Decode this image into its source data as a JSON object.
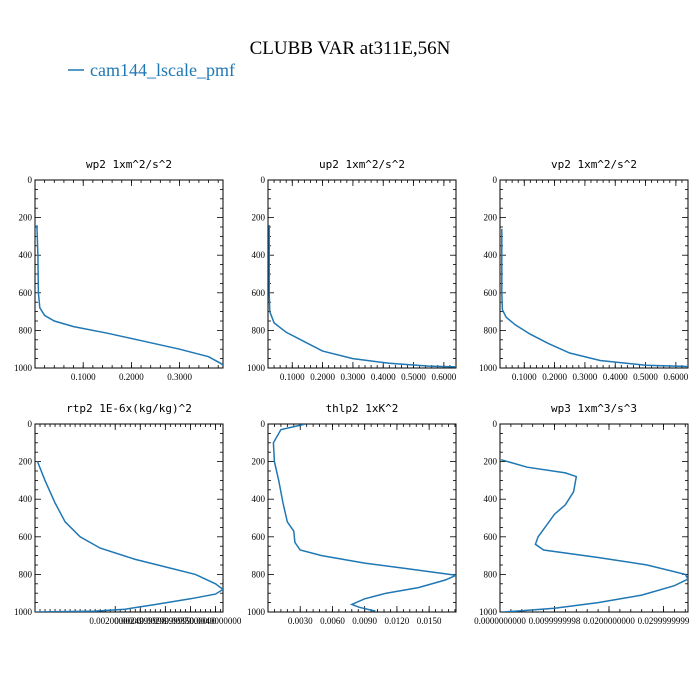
{
  "figure": {
    "title": "CLUBB VAR at311E,56N",
    "legend_label": "cam144_lscale_pmf",
    "line_color": "#1f77b4"
  },
  "chart_data": [
    {
      "type": "line",
      "title": "wp2  1xm^2/s^2",
      "xlim": [
        0.0,
        0.39
      ],
      "ylim": [
        1000,
        0
      ],
      "xticks": [
        0.1,
        0.2,
        0.3
      ],
      "xtick_labels": [
        "0.1000",
        "0.2000",
        "0.3000"
      ],
      "yticks": [
        0,
        200,
        400,
        600,
        800,
        1000
      ],
      "ytick_labels": [
        "0",
        "200",
        "400",
        "600",
        "800",
        "1000"
      ],
      "series": [
        {
          "values": [
            {
              "x": 0.004,
              "y": 240
            },
            {
              "x": 0.006,
              "y": 400
            },
            {
              "x": 0.007,
              "y": 600
            },
            {
              "x": 0.01,
              "y": 680
            },
            {
              "x": 0.02,
              "y": 720
            },
            {
              "x": 0.04,
              "y": 750
            },
            {
              "x": 0.08,
              "y": 780
            },
            {
              "x": 0.15,
              "y": 815
            },
            {
              "x": 0.23,
              "y": 860
            },
            {
              "x": 0.3,
              "y": 900
            },
            {
              "x": 0.36,
              "y": 940
            },
            {
              "x": 0.385,
              "y": 975
            },
            {
              "x": 0.39,
              "y": 985
            }
          ]
        }
      ]
    },
    {
      "type": "line",
      "title": "up2  1xm^2/s^2",
      "xlim": [
        0.02,
        0.64
      ],
      "ylim": [
        1000,
        0
      ],
      "xticks": [
        0.1,
        0.2,
        0.3,
        0.4,
        0.5,
        0.6
      ],
      "xtick_labels": [
        "0.1000",
        "0.2000",
        "0.3000",
        "0.4000",
        "0.5000",
        "0.6000"
      ],
      "yticks": [
        0,
        200,
        400,
        600,
        800,
        1000
      ],
      "ytick_labels": [
        "0",
        "200",
        "400",
        "600",
        "800",
        "1000"
      ],
      "series": [
        {
          "values": [
            {
              "x": 0.024,
              "y": 240
            },
            {
              "x": 0.024,
              "y": 600
            },
            {
              "x": 0.026,
              "y": 700
            },
            {
              "x": 0.04,
              "y": 760
            },
            {
              "x": 0.08,
              "y": 810
            },
            {
              "x": 0.14,
              "y": 860
            },
            {
              "x": 0.2,
              "y": 910
            },
            {
              "x": 0.3,
              "y": 950
            },
            {
              "x": 0.42,
              "y": 975
            },
            {
              "x": 0.55,
              "y": 990
            },
            {
              "x": 0.64,
              "y": 994
            }
          ]
        }
      ]
    },
    {
      "type": "line",
      "title": "vp2  1xm^2/s^2",
      "xlim": [
        0.02,
        0.64
      ],
      "ylim": [
        1000,
        0
      ],
      "xticks": [
        0.1,
        0.2,
        0.3,
        0.4,
        0.5,
        0.6
      ],
      "xtick_labels": [
        "0.1000",
        "0.2000",
        "0.3000",
        "0.4000",
        "0.5000",
        "0.6000"
      ],
      "yticks": [
        0,
        200,
        400,
        600,
        800,
        1000
      ],
      "ytick_labels": [
        "0",
        "200",
        "400",
        "600",
        "800",
        "1000"
      ],
      "series": [
        {
          "values": [
            {
              "x": 0.026,
              "y": 260
            },
            {
              "x": 0.026,
              "y": 600
            },
            {
              "x": 0.028,
              "y": 690
            },
            {
              "x": 0.04,
              "y": 730
            },
            {
              "x": 0.07,
              "y": 770
            },
            {
              "x": 0.12,
              "y": 820
            },
            {
              "x": 0.18,
              "y": 870
            },
            {
              "x": 0.25,
              "y": 920
            },
            {
              "x": 0.35,
              "y": 960
            },
            {
              "x": 0.5,
              "y": 985
            },
            {
              "x": 0.64,
              "y": 992
            }
          ]
        }
      ]
    },
    {
      "type": "line",
      "title": "rtp2  1E-6x(kg/kg)^2",
      "xlim": [
        0.0004,
        0.00415
      ],
      "ylim": [
        1000,
        0
      ],
      "xticks": [
        0.002,
        0.0025,
        0.003,
        0.0035,
        0.004
      ],
      "xtick_labels": [
        "0.0020000000",
        "0.0024999998",
        "0.0029999999",
        "0.0035000000",
        "0.0040000000"
      ],
      "yticks": [
        0,
        200,
        400,
        600,
        800,
        1000
      ],
      "ytick_labels": [
        "0",
        "200",
        "400",
        "600",
        "800",
        "1000"
      ],
      "series": [
        {
          "values": [
            {
              "x": 0.00045,
              "y": 200
            },
            {
              "x": 0.0006,
              "y": 300
            },
            {
              "x": 0.0008,
              "y": 420
            },
            {
              "x": 0.001,
              "y": 520
            },
            {
              "x": 0.0013,
              "y": 600
            },
            {
              "x": 0.0017,
              "y": 660
            },
            {
              "x": 0.0024,
              "y": 720
            },
            {
              "x": 0.003,
              "y": 760
            },
            {
              "x": 0.0036,
              "y": 800
            },
            {
              "x": 0.004,
              "y": 850
            },
            {
              "x": 0.00415,
              "y": 880
            },
            {
              "x": 0.004,
              "y": 905
            },
            {
              "x": 0.0035,
              "y": 930
            },
            {
              "x": 0.0028,
              "y": 960
            },
            {
              "x": 0.0022,
              "y": 985
            },
            {
              "x": 0.0016,
              "y": 995
            },
            {
              "x": 0.0004,
              "y": 1000
            }
          ]
        }
      ]
    },
    {
      "type": "line",
      "title": "thlp2  1xK^2",
      "xlim": [
        0.0,
        0.0175
      ],
      "ylim": [
        1000,
        0
      ],
      "xticks": [
        0.003,
        0.006,
        0.009,
        0.012,
        0.015
      ],
      "xtick_labels": [
        "0.0030",
        "0.0060",
        "0.0090",
        "0.0120",
        "0.0150"
      ],
      "yticks": [
        0,
        200,
        400,
        600,
        800,
        1000
      ],
      "ytick_labels": [
        "0",
        "200",
        "400",
        "600",
        "800",
        "1000"
      ],
      "series": [
        {
          "values": [
            {
              "x": 0.0035,
              "y": 0
            },
            {
              "x": 0.0012,
              "y": 30
            },
            {
              "x": 0.0005,
              "y": 100
            },
            {
              "x": 0.0006,
              "y": 200
            },
            {
              "x": 0.001,
              "y": 300
            },
            {
              "x": 0.0014,
              "y": 420
            },
            {
              "x": 0.0018,
              "y": 520
            },
            {
              "x": 0.0024,
              "y": 570
            },
            {
              "x": 0.0025,
              "y": 630
            },
            {
              "x": 0.003,
              "y": 670
            },
            {
              "x": 0.005,
              "y": 700
            },
            {
              "x": 0.009,
              "y": 740
            },
            {
              "x": 0.013,
              "y": 770
            },
            {
              "x": 0.0175,
              "y": 805
            },
            {
              "x": 0.0165,
              "y": 830
            },
            {
              "x": 0.014,
              "y": 870
            },
            {
              "x": 0.011,
              "y": 900
            },
            {
              "x": 0.009,
              "y": 930
            },
            {
              "x": 0.0078,
              "y": 960
            },
            {
              "x": 0.0085,
              "y": 975
            },
            {
              "x": 0.01,
              "y": 995
            }
          ]
        }
      ]
    },
    {
      "type": "line",
      "title": "wp3  1xm^3/s^3",
      "xlim": [
        0.0,
        0.0345
      ],
      "ylim": [
        1000,
        0
      ],
      "xticks": [
        0.0,
        0.01,
        0.02,
        0.03
      ],
      "xtick_labels": [
        "0.0000000000",
        "0.0099999998",
        "0.0200000000",
        "0.0299999999"
      ],
      "yticks": [
        0,
        200,
        400,
        600,
        800,
        1000
      ],
      "ytick_labels": [
        "0",
        "200",
        "400",
        "600",
        "800",
        "1000"
      ],
      "series": [
        {
          "values": [
            {
              "x": 0.0002,
              "y": 190
            },
            {
              "x": 0.005,
              "y": 230
            },
            {
              "x": 0.012,
              "y": 260
            },
            {
              "x": 0.014,
              "y": 280
            },
            {
              "x": 0.0135,
              "y": 360
            },
            {
              "x": 0.012,
              "y": 430
            },
            {
              "x": 0.01,
              "y": 480
            },
            {
              "x": 0.008,
              "y": 560
            },
            {
              "x": 0.007,
              "y": 600
            },
            {
              "x": 0.0065,
              "y": 640
            },
            {
              "x": 0.008,
              "y": 670
            },
            {
              "x": 0.018,
              "y": 710
            },
            {
              "x": 0.027,
              "y": 750
            },
            {
              "x": 0.034,
              "y": 800
            },
            {
              "x": 0.0345,
              "y": 825
            },
            {
              "x": 0.032,
              "y": 860
            },
            {
              "x": 0.026,
              "y": 910
            },
            {
              "x": 0.018,
              "y": 950
            },
            {
              "x": 0.01,
              "y": 980
            },
            {
              "x": 0.003,
              "y": 995
            },
            {
              "x": 0.0005,
              "y": 1000
            }
          ]
        }
      ]
    }
  ]
}
